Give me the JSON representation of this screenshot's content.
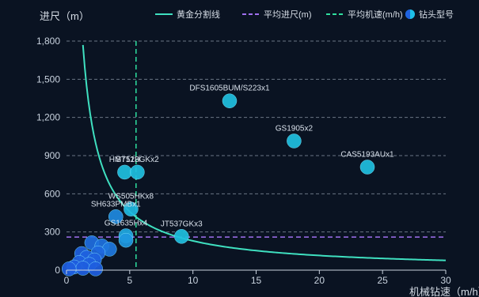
{
  "chart_data": {
    "type": "scatter",
    "xlabel": "机械钻速（m/h）",
    "ylabel": "进尺（m）",
    "xlim": [
      0,
      30
    ],
    "ylim": [
      0,
      1800
    ],
    "x_ticks": [
      0,
      5,
      10,
      15,
      20,
      25,
      30
    ],
    "y_ticks": [
      0,
      300,
      600,
      900,
      1200,
      1500,
      1800
    ],
    "y_tick_labels": [
      "0",
      "300",
      "600",
      "900",
      "1,200",
      "1,500",
      "1,800"
    ],
    "grid": "horizontal-dashed",
    "legend_position": "top-right",
    "legend": [
      {
        "name": "黄金分割线",
        "style": "solid-line",
        "color": "#3fe0c0"
      },
      {
        "name": "平均进尺(m)",
        "style": "dashed-line",
        "color": "#a070f0"
      },
      {
        "name": "平均机速(m/h)",
        "style": "dashed-line",
        "color": "#2fe0a0"
      },
      {
        "name": "钻头型号",
        "style": "circle",
        "color": "#1ec0e8"
      }
    ],
    "average_footage": 260,
    "average_rop": 5.5,
    "golden_curve": {
      "k": 2300,
      "x_start": 1.3,
      "x_end": 30
    },
    "points": [
      {
        "label": "DFS1605BUM/S223x1",
        "x": 12.9,
        "y": 1330,
        "labeled": true,
        "color": "#1fc0e0"
      },
      {
        "label": "GS1905x2",
        "x": 18.0,
        "y": 1015,
        "labeled": true,
        "color": "#1fc0e0"
      },
      {
        "label": "CAS5193AUx1",
        "x": 23.8,
        "y": 810,
        "labeled": true,
        "color": "#1fc0e0"
      },
      {
        "label": "HM712H",
        "x": 4.6,
        "y": 770,
        "labeled": true,
        "color": "#1fc0e0"
      },
      {
        "label": "ST513GKx2",
        "x": 5.6,
        "y": 770,
        "labeled": true,
        "color": "#1fc0e0"
      },
      {
        "label": "WS505HKx8",
        "x": 5.1,
        "y": 480,
        "labeled": true,
        "color": "#1fb8e0"
      },
      {
        "label": "SH633PMBx1",
        "x": 3.9,
        "y": 420,
        "labeled": true,
        "color": "#1f8ae0"
      },
      {
        "label": "GS1635Hx4",
        "x": 4.7,
        "y": 270,
        "labeled": true,
        "color": "#1fa8e0"
      },
      {
        "label": "JT537GKx3",
        "x": 9.1,
        "y": 265,
        "labeled": true,
        "color": "#1fc0e0"
      },
      {
        "label": "",
        "x": 4.7,
        "y": 235,
        "labeled": false,
        "color": "#1f98e0"
      },
      {
        "label": "",
        "x": 2.0,
        "y": 215,
        "labeled": false,
        "color": "#1f6ee0"
      },
      {
        "label": "",
        "x": 2.8,
        "y": 190,
        "labeled": false,
        "color": "#1f72e0"
      },
      {
        "label": "",
        "x": 3.4,
        "y": 165,
        "labeled": false,
        "color": "#1f78e0"
      },
      {
        "label": "",
        "x": 2.5,
        "y": 135,
        "labeled": false,
        "color": "#1f68e0"
      },
      {
        "label": "",
        "x": 1.2,
        "y": 130,
        "labeled": false,
        "color": "#1f62e0"
      },
      {
        "label": "",
        "x": 1.6,
        "y": 100,
        "labeled": false,
        "color": "#1f62e0"
      },
      {
        "label": "",
        "x": 2.2,
        "y": 80,
        "labeled": false,
        "color": "#1f62e0"
      },
      {
        "label": "",
        "x": 1.0,
        "y": 60,
        "labeled": false,
        "color": "#1f60e0"
      },
      {
        "label": "",
        "x": 1.8,
        "y": 45,
        "labeled": false,
        "color": "#1f60e0"
      },
      {
        "label": "",
        "x": 0.6,
        "y": 25,
        "labeled": false,
        "color": "#1f5ee0"
      },
      {
        "label": "",
        "x": 1.3,
        "y": 15,
        "labeled": false,
        "color": "#1f5ee0"
      },
      {
        "label": "",
        "x": 0.2,
        "y": 10,
        "labeled": false,
        "color": "#1f5ee0"
      },
      {
        "label": "",
        "x": 2.3,
        "y": 10,
        "labeled": false,
        "color": "#1f5ee0"
      }
    ]
  }
}
